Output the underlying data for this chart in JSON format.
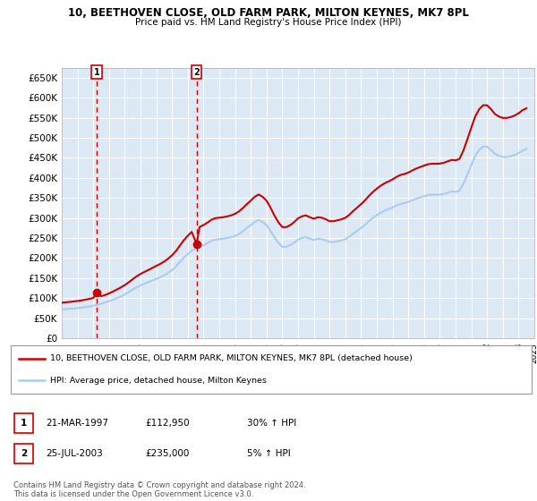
{
  "title": "10, BEETHOVEN CLOSE, OLD FARM PARK, MILTON KEYNES, MK7 8PL",
  "subtitle": "Price paid vs. HM Land Registry's House Price Index (HPI)",
  "ylim": [
    0,
    675000
  ],
  "yticks": [
    0,
    50000,
    100000,
    150000,
    200000,
    250000,
    300000,
    350000,
    400000,
    450000,
    500000,
    550000,
    600000,
    650000
  ],
  "ytick_labels": [
    "£0",
    "£50K",
    "£100K",
    "£150K",
    "£200K",
    "£250K",
    "£300K",
    "£350K",
    "£400K",
    "£450K",
    "£500K",
    "£550K",
    "£600K",
    "£650K"
  ],
  "xtick_years": [
    1995,
    1996,
    1997,
    1998,
    1999,
    2000,
    2001,
    2002,
    2003,
    2004,
    2005,
    2006,
    2007,
    2008,
    2009,
    2010,
    2011,
    2012,
    2013,
    2014,
    2015,
    2016,
    2017,
    2018,
    2019,
    2020,
    2021,
    2022,
    2023,
    2024,
    2025
  ],
  "background_color": "#dce9f5",
  "grid_color": "#ffffff",
  "sale1_date": 1997.22,
  "sale1_price": 112950,
  "sale1_label": "1",
  "sale2_date": 2003.56,
  "sale2_price": 235000,
  "sale2_label": "2",
  "vline_color": "#cc0000",
  "dot_color": "#cc0000",
  "line_color_red": "#cc0000",
  "line_color_blue": "#aaccee",
  "legend_label_red": "10, BEETHOVEN CLOSE, OLD FARM PARK, MILTON KEYNES, MK7 8PL (detached house)",
  "legend_label_blue": "HPI: Average price, detached house, Milton Keynes",
  "table_row1": [
    "1",
    "21-MAR-1997",
    "£112,950",
    "30% ↑ HPI"
  ],
  "table_row2": [
    "2",
    "25-JUL-2003",
    "£235,000",
    "5% ↑ HPI"
  ],
  "footer": "Contains HM Land Registry data © Crown copyright and database right 2024.\nThis data is licensed under the Open Government Licence v3.0.",
  "hpi_data_x": [
    1995.0,
    1995.25,
    1995.5,
    1995.75,
    1996.0,
    1996.25,
    1996.5,
    1996.75,
    1997.0,
    1997.25,
    1997.5,
    1997.75,
    1998.0,
    1998.25,
    1998.5,
    1998.75,
    1999.0,
    1999.25,
    1999.5,
    1999.75,
    2000.0,
    2000.25,
    2000.5,
    2000.75,
    2001.0,
    2001.25,
    2001.5,
    2001.75,
    2002.0,
    2002.25,
    2002.5,
    2002.75,
    2003.0,
    2003.25,
    2003.5,
    2003.75,
    2004.0,
    2004.25,
    2004.5,
    2004.75,
    2005.0,
    2005.25,
    2005.5,
    2005.75,
    2006.0,
    2006.25,
    2006.5,
    2006.75,
    2007.0,
    2007.25,
    2007.5,
    2007.75,
    2008.0,
    2008.25,
    2008.5,
    2008.75,
    2009.0,
    2009.25,
    2009.5,
    2009.75,
    2010.0,
    2010.25,
    2010.5,
    2010.75,
    2011.0,
    2011.25,
    2011.5,
    2011.75,
    2012.0,
    2012.25,
    2012.5,
    2012.75,
    2013.0,
    2013.25,
    2013.5,
    2013.75,
    2014.0,
    2014.25,
    2014.5,
    2014.75,
    2015.0,
    2015.25,
    2015.5,
    2015.75,
    2016.0,
    2016.25,
    2016.5,
    2016.75,
    2017.0,
    2017.25,
    2017.5,
    2017.75,
    2018.0,
    2018.25,
    2018.5,
    2018.75,
    2019.0,
    2019.25,
    2019.5,
    2019.75,
    2020.0,
    2020.25,
    2020.5,
    2020.75,
    2021.0,
    2021.25,
    2021.5,
    2021.75,
    2022.0,
    2022.25,
    2022.5,
    2022.75,
    2023.0,
    2023.25,
    2023.5,
    2023.75,
    2024.0,
    2024.25,
    2024.5
  ],
  "hpi_data_y": [
    72000,
    72500,
    73000,
    74000,
    75000,
    76000,
    77500,
    79000,
    81000,
    83000,
    86000,
    89000,
    92000,
    96000,
    100000,
    104000,
    109000,
    115000,
    121000,
    127000,
    132000,
    136000,
    140000,
    144000,
    148000,
    152000,
    157000,
    163000,
    170000,
    179000,
    190000,
    201000,
    210000,
    218000,
    224000,
    228000,
    232000,
    237000,
    243000,
    246000,
    247000,
    248000,
    250000,
    252000,
    255000,
    260000,
    267000,
    275000,
    282000,
    290000,
    295000,
    290000,
    282000,
    268000,
    252000,
    238000,
    228000,
    228000,
    232000,
    238000,
    246000,
    250000,
    252000,
    248000,
    245000,
    248000,
    247000,
    244000,
    240000,
    240000,
    242000,
    244000,
    247000,
    253000,
    261000,
    268000,
    275000,
    283000,
    292000,
    300000,
    307000,
    313000,
    318000,
    322000,
    326000,
    331000,
    335000,
    337000,
    340000,
    344000,
    348000,
    351000,
    354000,
    357000,
    358000,
    358000,
    358000,
    360000,
    363000,
    366000,
    365000,
    368000,
    385000,
    408000,
    432000,
    455000,
    470000,
    478000,
    478000,
    470000,
    460000,
    455000,
    452000,
    452000,
    454000,
    457000,
    462000,
    468000,
    472000
  ],
  "price_data_x": [
    1995.0,
    1995.25,
    1995.5,
    1995.75,
    1996.0,
    1996.25,
    1996.5,
    1996.75,
    1997.0,
    1997.22,
    1997.5,
    1997.75,
    1998.0,
    1998.25,
    1998.5,
    1998.75,
    1999.0,
    1999.25,
    1999.5,
    1999.75,
    2000.0,
    2000.25,
    2000.5,
    2000.75,
    2001.0,
    2001.25,
    2001.5,
    2001.75,
    2002.0,
    2002.25,
    2002.5,
    2002.75,
    2003.0,
    2003.25,
    2003.56,
    2003.75,
    2004.0,
    2004.25,
    2004.5,
    2004.75,
    2005.0,
    2005.25,
    2005.5,
    2005.75,
    2006.0,
    2006.25,
    2006.5,
    2006.75,
    2007.0,
    2007.25,
    2007.5,
    2007.75,
    2008.0,
    2008.25,
    2008.5,
    2008.75,
    2009.0,
    2009.25,
    2009.5,
    2009.75,
    2010.0,
    2010.25,
    2010.5,
    2010.75,
    2011.0,
    2011.25,
    2011.5,
    2011.75,
    2012.0,
    2012.25,
    2012.5,
    2012.75,
    2013.0,
    2013.25,
    2013.5,
    2013.75,
    2014.0,
    2014.25,
    2014.5,
    2014.75,
    2015.0,
    2015.25,
    2015.5,
    2015.75,
    2016.0,
    2016.25,
    2016.5,
    2016.75,
    2017.0,
    2017.25,
    2017.5,
    2017.75,
    2018.0,
    2018.25,
    2018.5,
    2018.75,
    2019.0,
    2019.25,
    2019.5,
    2019.75,
    2020.0,
    2020.25,
    2020.5,
    2020.75,
    2021.0,
    2021.25,
    2021.5,
    2021.75,
    2022.0,
    2022.25,
    2022.5,
    2022.75,
    2023.0,
    2023.25,
    2023.5,
    2023.75,
    2024.0,
    2024.25,
    2024.5
  ],
  "price_data_y": [
    88400,
    89400,
    90400,
    91600,
    92800,
    94200,
    96100,
    98200,
    100200,
    112950,
    104700,
    107700,
    111700,
    116400,
    121400,
    126600,
    132400,
    139400,
    147000,
    154200,
    160300,
    165300,
    170200,
    175200,
    180400,
    185200,
    191100,
    198300,
    206700,
    217400,
    231000,
    244500,
    255600,
    265200,
    235000,
    277400,
    282300,
    288100,
    295400,
    299400,
    300600,
    301800,
    303900,
    306400,
    310200,
    316200,
    324800,
    334500,
    343100,
    352800,
    358500,
    352800,
    342900,
    325900,
    306200,
    289400,
    277100,
    277100,
    282000,
    289400,
    299100,
    304000,
    306400,
    301800,
    297900,
    301700,
    300600,
    297000,
    291800,
    291800,
    294200,
    296500,
    300300,
    307600,
    317200,
    325700,
    334400,
    343900,
    354900,
    364700,
    373200,
    380400,
    386600,
    391200,
    396200,
    402300,
    407200,
    409600,
    413200,
    418400,
    423200,
    427000,
    430500,
    434000,
    435200,
    435200,
    435600,
    437600,
    441200,
    444800,
    443600,
    447400,
    468300,
    496200,
    525300,
    553400,
    571300,
    581200,
    581200,
    571300,
    559300,
    553000,
    549500,
    549500,
    551800,
    555400,
    561200,
    568800,
    573700
  ]
}
